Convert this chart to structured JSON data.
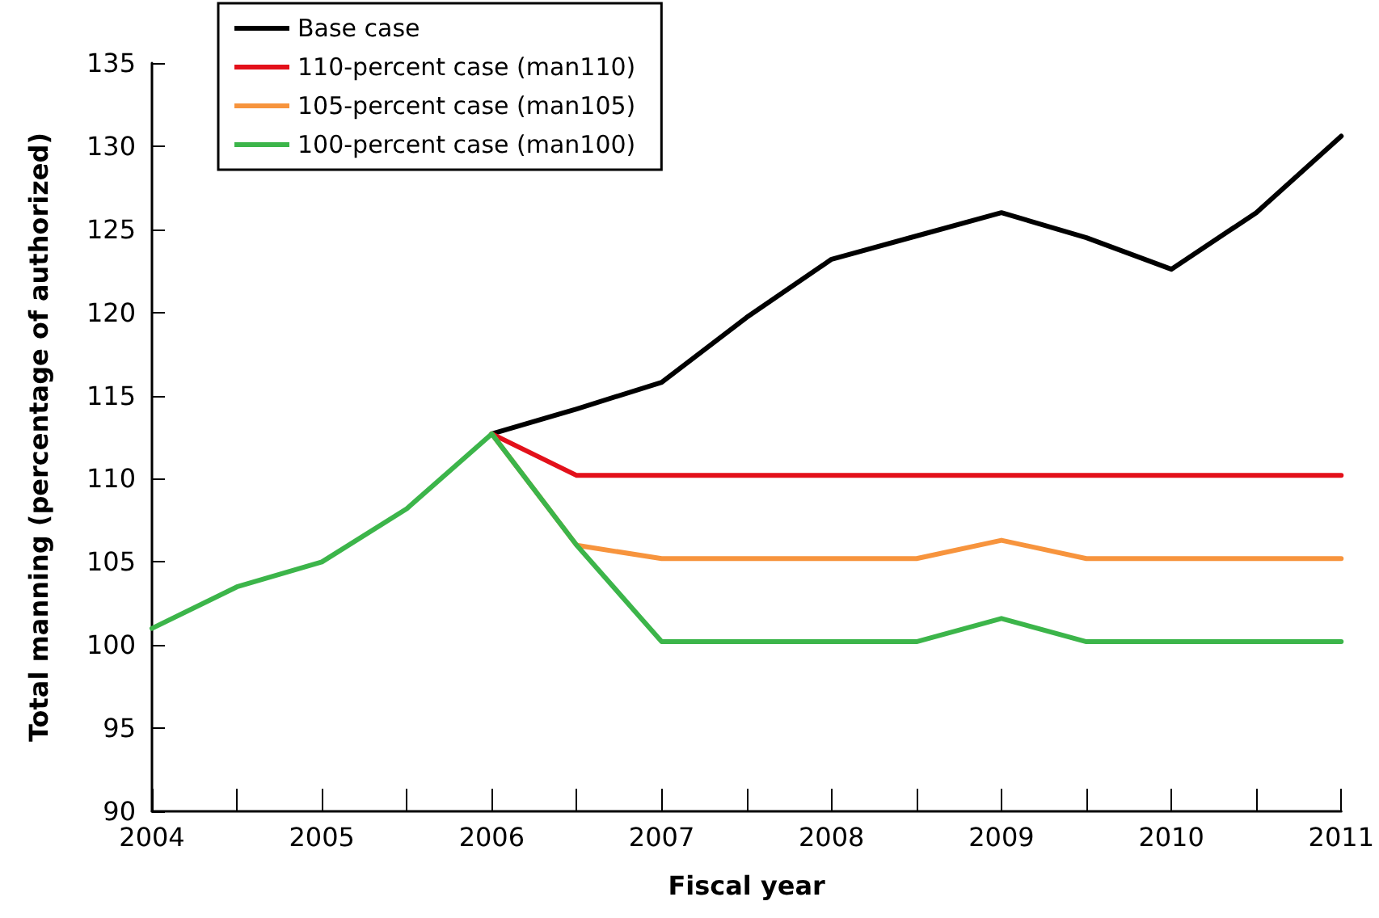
{
  "chart_data": {
    "type": "line",
    "xlabel": "Fiscal year",
    "ylabel": "Total manning (percentage of authorized)",
    "xlim": [
      2004,
      2011
    ],
    "xticks": [
      2004,
      {
        "value": 2004.5,
        "label": null
      },
      2005,
      {
        "value": 2005.5,
        "label": null
      },
      2006,
      {
        "value": 2006.5,
        "label": null
      },
      2007,
      {
        "value": 2007.5,
        "label": null
      },
      2008,
      {
        "value": 2008.5,
        "label": null
      },
      2009,
      {
        "value": 2009.5,
        "label": null
      },
      2010,
      {
        "value": 2010.5,
        "label": null
      },
      2011
    ],
    "ylim": [
      90,
      135
    ],
    "yticks": [
      90,
      95,
      100,
      105,
      110,
      115,
      120,
      125,
      130,
      135
    ],
    "x": [
      2004,
      2004.5,
      2005,
      2005.5,
      2006,
      2006.5,
      2007,
      2007.5,
      2008,
      2008.5,
      2009,
      2009.5,
      2010,
      2010.5,
      2011
    ],
    "series": [
      {
        "name": "Base case",
        "color": "#000000",
        "values": [
          null,
          null,
          null,
          null,
          112.7,
          114.2,
          115.8,
          119.7,
          123.2,
          124.6,
          126,
          124.5,
          122.6,
          126,
          130.6
        ]
      },
      {
        "name": "110-percent case (man110)",
        "color": "#e3101a",
        "values": [
          null,
          null,
          null,
          null,
          112.7,
          110.2,
          110.2,
          110.2,
          110.2,
          110.2,
          110.2,
          110.2,
          110.2,
          110.2,
          110.2
        ]
      },
      {
        "name": "105-percent case (man105)",
        "color": "#f7943d",
        "values": [
          null,
          null,
          null,
          null,
          112.7,
          106,
          105.2,
          105.2,
          105.2,
          105.2,
          106.3,
          105.2,
          105.2,
          105.2,
          105.2
        ]
      },
      {
        "name": "100-percent case (man100)",
        "color": "#3cb54a",
        "values": [
          101,
          103.5,
          105,
          108.2,
          112.7,
          106,
          100.2,
          100.2,
          100.2,
          100.2,
          101.6,
          100.2,
          100.2,
          100.2,
          100.2
        ]
      }
    ],
    "legend": "top left",
    "grid": false,
    "marker": "none",
    "line_style": "solid"
  }
}
